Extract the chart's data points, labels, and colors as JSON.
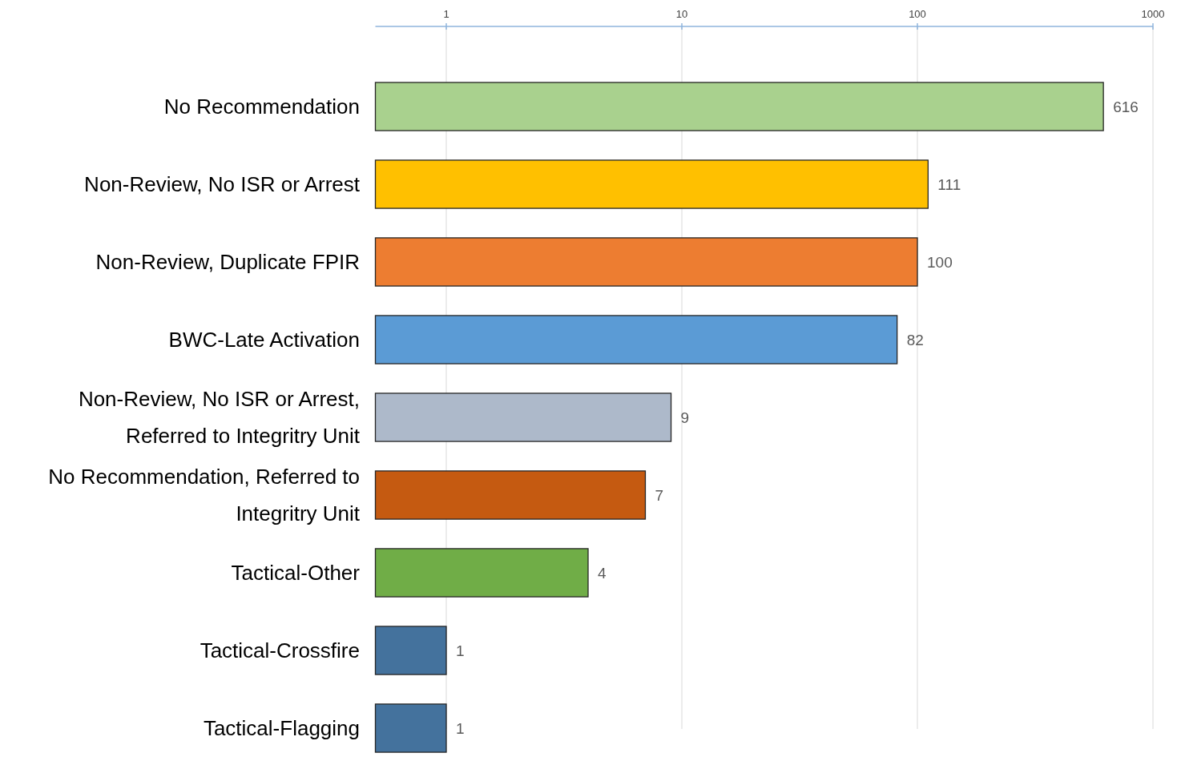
{
  "chart_data": {
    "type": "bar",
    "orientation": "horizontal",
    "categories": [
      "No Recommendation",
      "Non-Review, No ISR or Arrest",
      "Non-Review, Duplicate FPIR",
      "BWC-Late Activation",
      "Non-Review, No ISR or Arrest, Referred to Integritry Unit",
      "No Recommendation, Referred to Integritry Unit",
      "Tactical-Other",
      "Tactical-Crossfire",
      "Tactical-Flagging"
    ],
    "values": [
      616,
      111,
      100,
      82,
      9,
      7,
      4,
      1,
      1
    ],
    "colors": [
      "#a9d18e",
      "#ffc000",
      "#ed7d31",
      "#5b9bd5",
      "#adb9ca",
      "#c55a11",
      "#70ad47",
      "#44729d",
      "#44729d"
    ],
    "log": "x",
    "xlim": [
      0.5,
      1000
    ],
    "xticks": [
      1,
      10,
      100,
      1000
    ],
    "grid": "x",
    "data_labels": true
  }
}
